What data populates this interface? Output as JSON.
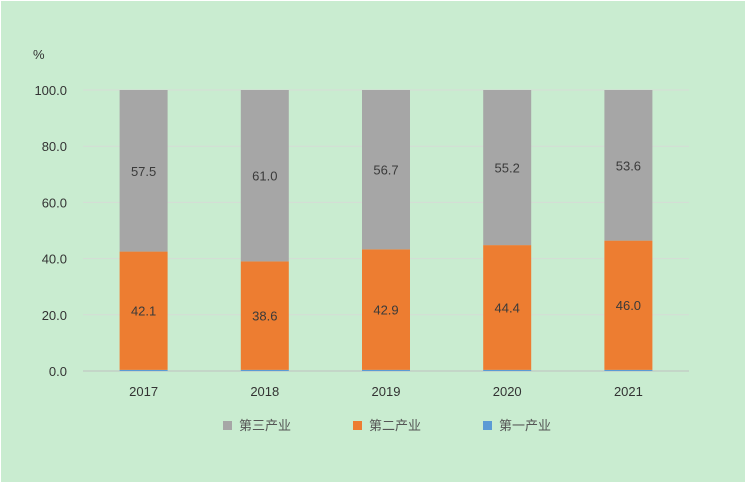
{
  "chart_data": {
    "type": "bar",
    "stacked": true,
    "unit_label": "%",
    "categories": [
      "2017",
      "2018",
      "2019",
      "2020",
      "2021"
    ],
    "series": [
      {
        "name": "第三产业",
        "color": "#a6a6a6",
        "values": [
          57.5,
          61.0,
          56.7,
          55.2,
          53.6
        ]
      },
      {
        "name": "第二产业",
        "color": "#ed7d31",
        "values": [
          42.1,
          38.6,
          42.9,
          44.4,
          46.0
        ]
      },
      {
        "name": "第一产业",
        "color": "#5b9bd5",
        "values": [
          0.4,
          0.4,
          0.4,
          0.4,
          0.4
        ]
      }
    ],
    "ylim": [
      0,
      100
    ],
    "yticks": [
      "0.0",
      "20.0",
      "40.0",
      "60.0",
      "80.0",
      "100.0"
    ],
    "grid": true,
    "legend_position": "bottom"
  }
}
